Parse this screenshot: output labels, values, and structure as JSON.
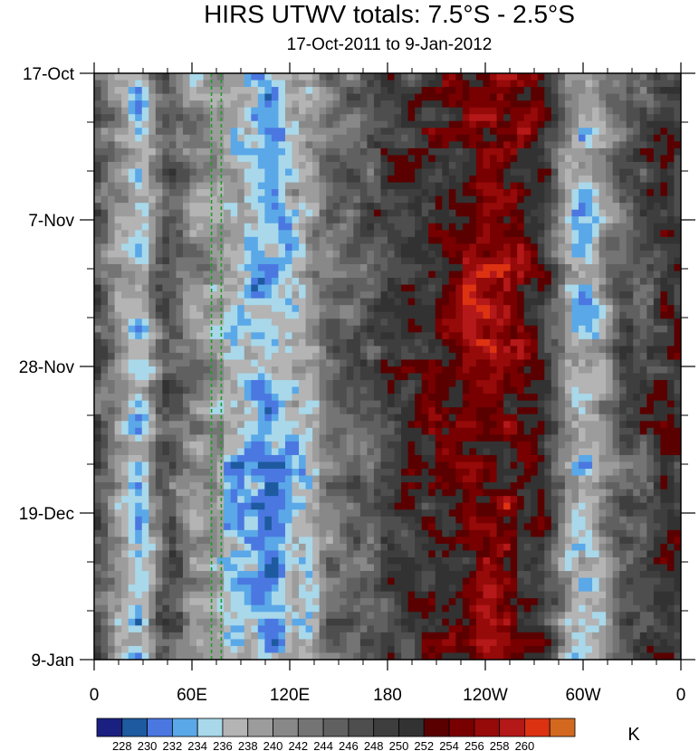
{
  "chart_data": {
    "type": "heatmap",
    "title": "HIRS UTWV totals: 7.5°S - 2.5°S",
    "subtitle": "17-Oct-2011 to 9-Jan-2012",
    "x_ticks": [
      "0",
      "60E",
      "120E",
      "180",
      "120W",
      "60W",
      "0"
    ],
    "x_tick_values": [
      0,
      60,
      120,
      180,
      240,
      300,
      360
    ],
    "xlim": [
      0,
      360
    ],
    "y_ticks": [
      "17-Oct",
      "7-Nov",
      "28-Nov",
      "19-Dec",
      "9-Jan"
    ],
    "y_tick_values": [
      "2011-10-17",
      "2011-11-07",
      "2011-11-28",
      "2011-12-19",
      "2012-01-09"
    ],
    "ylim": [
      "2011-10-17",
      "2012-01-09"
    ],
    "y_direction": "time increases downward",
    "units": "K",
    "contour_levels": [
      228,
      230,
      232,
      234,
      236,
      238,
      240,
      242,
      244,
      246,
      248,
      250,
      252,
      254,
      256,
      258,
      260
    ],
    "colorbar_colors": [
      "#1a2080",
      "#1e5aa0",
      "#4a78e0",
      "#5aa8e8",
      "#a8d8ea",
      "#b4b4b4",
      "#9c9c9c",
      "#888888",
      "#747474",
      "#606060",
      "#4e4e4e",
      "#3e3e3e",
      "#323232",
      "#5a0000",
      "#780000",
      "#960a0a",
      "#b41818",
      "#dc3212",
      "#d2691e"
    ],
    "reference_lines": {
      "style": "green dashed",
      "x": [
        72,
        78
      ]
    },
    "bands": [
      {
        "lon": 15,
        "value": 240
      },
      {
        "lon": 28,
        "value": 236
      },
      {
        "lon": 45,
        "value": 246
      },
      {
        "lon": 65,
        "value": 240
      },
      {
        "lon": 90,
        "value": 236
      },
      {
        "lon": 108,
        "value": 234
      },
      {
        "lon": 125,
        "value": 238
      },
      {
        "lon": 150,
        "value": 244
      },
      {
        "lon": 180,
        "value": 248
      },
      {
        "lon": 215,
        "value": 252
      },
      {
        "lon": 245,
        "value": 255
      },
      {
        "lon": 270,
        "value": 252
      },
      {
        "lon": 300,
        "value": 236
      },
      {
        "lon": 330,
        "value": 246
      },
      {
        "lon": 355,
        "value": 250
      }
    ]
  }
}
